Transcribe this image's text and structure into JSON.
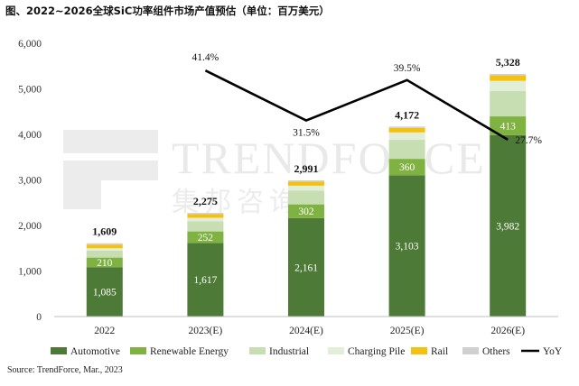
{
  "title": "图、2022~2026全球SiC功率组件市场产值预估（单位：百万美元）",
  "watermark": {
    "en": "TRENDFORCE",
    "cn": "集邦咨询"
  },
  "source": "Source: TrendForce, Mar., 2023",
  "colors": {
    "Automotive": "#4e7a37",
    "Renewable Energy": "#7fb241",
    "Industrial": "#c6deb1",
    "Charging Pile": "#e3eed8",
    "Rail": "#f4c10f",
    "Others": "#d0d0d0",
    "YoY": "#000000"
  },
  "chart_data": {
    "type": "bar",
    "stacked": true,
    "categories": [
      "2022",
      "2023(E)",
      "2024(E)",
      "2025(E)",
      "2026(E)"
    ],
    "ylim": [
      0,
      6000
    ],
    "yticks": [
      "0",
      "1,000",
      "2,000",
      "3,000",
      "4,000",
      "5,000",
      "6,000"
    ],
    "series": [
      {
        "name": "Automotive",
        "values": [
          1085,
          1617,
          2161,
          3103,
          3982
        ],
        "labels": [
          "1,085",
          "1,617",
          "2,161",
          "3,103",
          "3,982"
        ]
      },
      {
        "name": "Renewable Energy",
        "values": [
          210,
          252,
          302,
          360,
          413
        ],
        "labels": [
          "210",
          "252",
          "302",
          "360",
          "413"
        ]
      },
      {
        "name": "Industrial",
        "values": [
          150,
          220,
          300,
          420,
          560
        ]
      },
      {
        "name": "Charging Pile",
        "values": [
          55,
          80,
          110,
          160,
          220
        ]
      },
      {
        "name": "Rail",
        "values": [
          80,
          80,
          90,
          100,
          120
        ]
      },
      {
        "name": "Others",
        "values": [
          29,
          26,
          28,
          29,
          33
        ]
      }
    ],
    "totals": [
      1609,
      2275,
      2991,
      4172,
      5328
    ],
    "total_labels": [
      "1,609",
      "2,275",
      "2,991",
      "4,172",
      "5,328"
    ],
    "yoy": {
      "name": "YoY",
      "values": [
        41.4,
        31.5,
        39.5,
        27.7
      ],
      "labels": [
        "41.4%",
        "31.5%",
        "39.5%",
        "27.7%"
      ]
    },
    "legend": [
      "Automotive",
      "Renewable Energy",
      "Industrial",
      "Charging Pile",
      "Rail",
      "Others",
      "YoY"
    ],
    "legend_position": "bottom",
    "grid": false
  }
}
